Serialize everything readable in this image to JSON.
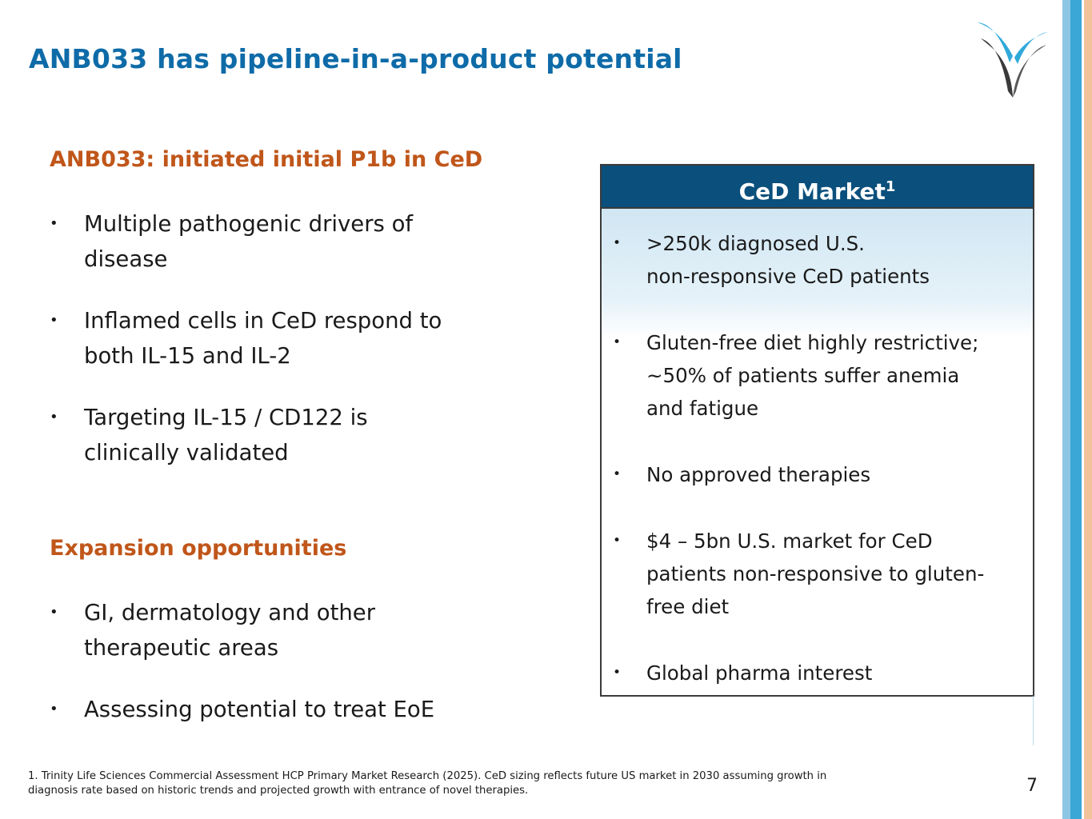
{
  "slide": {
    "title": "ANB033 has pipeline-in-a-product potential",
    "page_number": "7"
  },
  "left": {
    "section1": {
      "heading": "ANB033: initiated initial P1b in CeD",
      "bullets": [
        [
          "Multiple pathogenic drivers of",
          "disease"
        ],
        [
          "Inflamed cells in CeD respond to",
          "both IL-15 and IL-2"
        ],
        [
          "Targeting IL-15 / CD122 is",
          "clinically validated"
        ]
      ]
    },
    "section2": {
      "heading": "Expansion opportunities",
      "bullets": [
        [
          "GI, dermatology and other",
          "therapeutic areas"
        ],
        [
          "Assessing potential to treat EoE"
        ]
      ]
    }
  },
  "panel": {
    "title": "CeD Market",
    "title_superscript": "1",
    "bullets": [
      [
        ">250k diagnosed U.S.",
        "non-responsive CeD patients"
      ],
      [
        "Gluten-free diet highly restrictive;",
        "~50% of patients suffer anemia",
        "and fatigue"
      ],
      [
        "No approved therapies"
      ],
      [
        "$4 – 5bn U.S. market for CeD",
        "patients non-responsive to gluten-",
        "free diet"
      ],
      [
        "Global pharma interest"
      ]
    ]
  },
  "footnote": {
    "line1": "1. Trinity Life Sciences Commercial Assessment HCP Primary Market Research (2025). CeD sizing reflects future US market in 2030 assuming growth in",
    "line2": "diagnosis rate based on historic trends and projected growth with entrance of novel therapies."
  },
  "bullet_glyph": "•",
  "colors": {
    "title": "#0e6ba8",
    "heading": "#c0561a",
    "panel_header": "#0b4f7c",
    "stripe_blue": "#3aa7d6",
    "stripe_orange": "#f2c39a"
  }
}
